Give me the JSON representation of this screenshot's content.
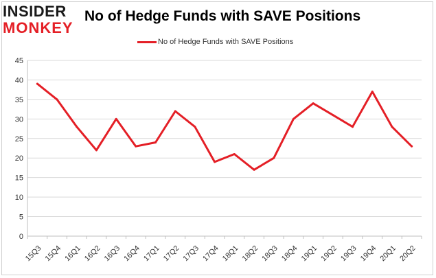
{
  "logo": {
    "line1": "INSIDER",
    "line2": "MONKEY"
  },
  "title": "No of Hedge Funds with SAVE Positions",
  "colors": {
    "series": "#e41f26",
    "grid": "#d9d9d9",
    "axis_text": "#333333"
  },
  "chart_data": {
    "type": "line",
    "title": "No of Hedge Funds with SAVE Positions",
    "xlabel": "",
    "ylabel": "",
    "categories": [
      "15Q3",
      "15Q4",
      "16Q1",
      "16Q2",
      "16Q3",
      "16Q4",
      "17Q1",
      "17Q2",
      "17Q3",
      "17Q4",
      "18Q1",
      "18Q2",
      "18Q3",
      "18Q4",
      "19Q1",
      "19Q2",
      "19Q3",
      "19Q4",
      "20Q1",
      "20Q2"
    ],
    "series": [
      {
        "name": "No of Hedge Funds with SAVE Positions",
        "values": [
          39,
          35,
          28,
          22,
          30,
          23,
          24,
          32,
          28,
          19,
          21,
          17,
          20,
          30,
          34,
          31,
          28,
          37,
          28,
          23
        ]
      }
    ],
    "ylim": [
      0,
      45
    ],
    "yticks": [
      0,
      5,
      10,
      15,
      20,
      25,
      30,
      35,
      40,
      45
    ],
    "grid": true,
    "legend": "top-center"
  }
}
